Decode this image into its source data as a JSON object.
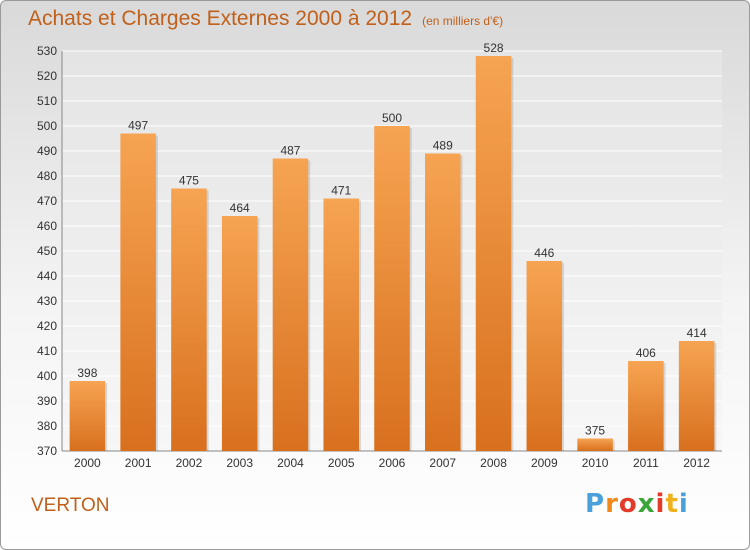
{
  "chart_data": {
    "type": "bar",
    "title": "Achats et Charges Externes 2000 à 2012",
    "subtitle": "(en milliers d'€)",
    "categories": [
      "2000",
      "2001",
      "2002",
      "2003",
      "2004",
      "2005",
      "2006",
      "2007",
      "2008",
      "2009",
      "2010",
      "2011",
      "2012"
    ],
    "values": [
      398,
      497,
      475,
      464,
      487,
      471,
      500,
      489,
      528,
      446,
      375,
      406,
      414
    ],
    "ylim": [
      370,
      530
    ],
    "yticks": [
      370,
      380,
      390,
      400,
      410,
      420,
      430,
      440,
      450,
      460,
      470,
      480,
      490,
      500,
      510,
      520,
      530
    ],
    "grid": true,
    "bar_color": "#f09a45"
  },
  "footer": {
    "town": "VERTON",
    "brand": [
      "P",
      "r",
      "o",
      "x",
      "i",
      "t",
      "i"
    ],
    "brand_colors": [
      "#4aa0d8",
      "#f08a1c",
      "#e33a2a",
      "#3aa63a",
      "#e33a2a",
      "#f0b21c",
      "#4aa0d8"
    ]
  }
}
